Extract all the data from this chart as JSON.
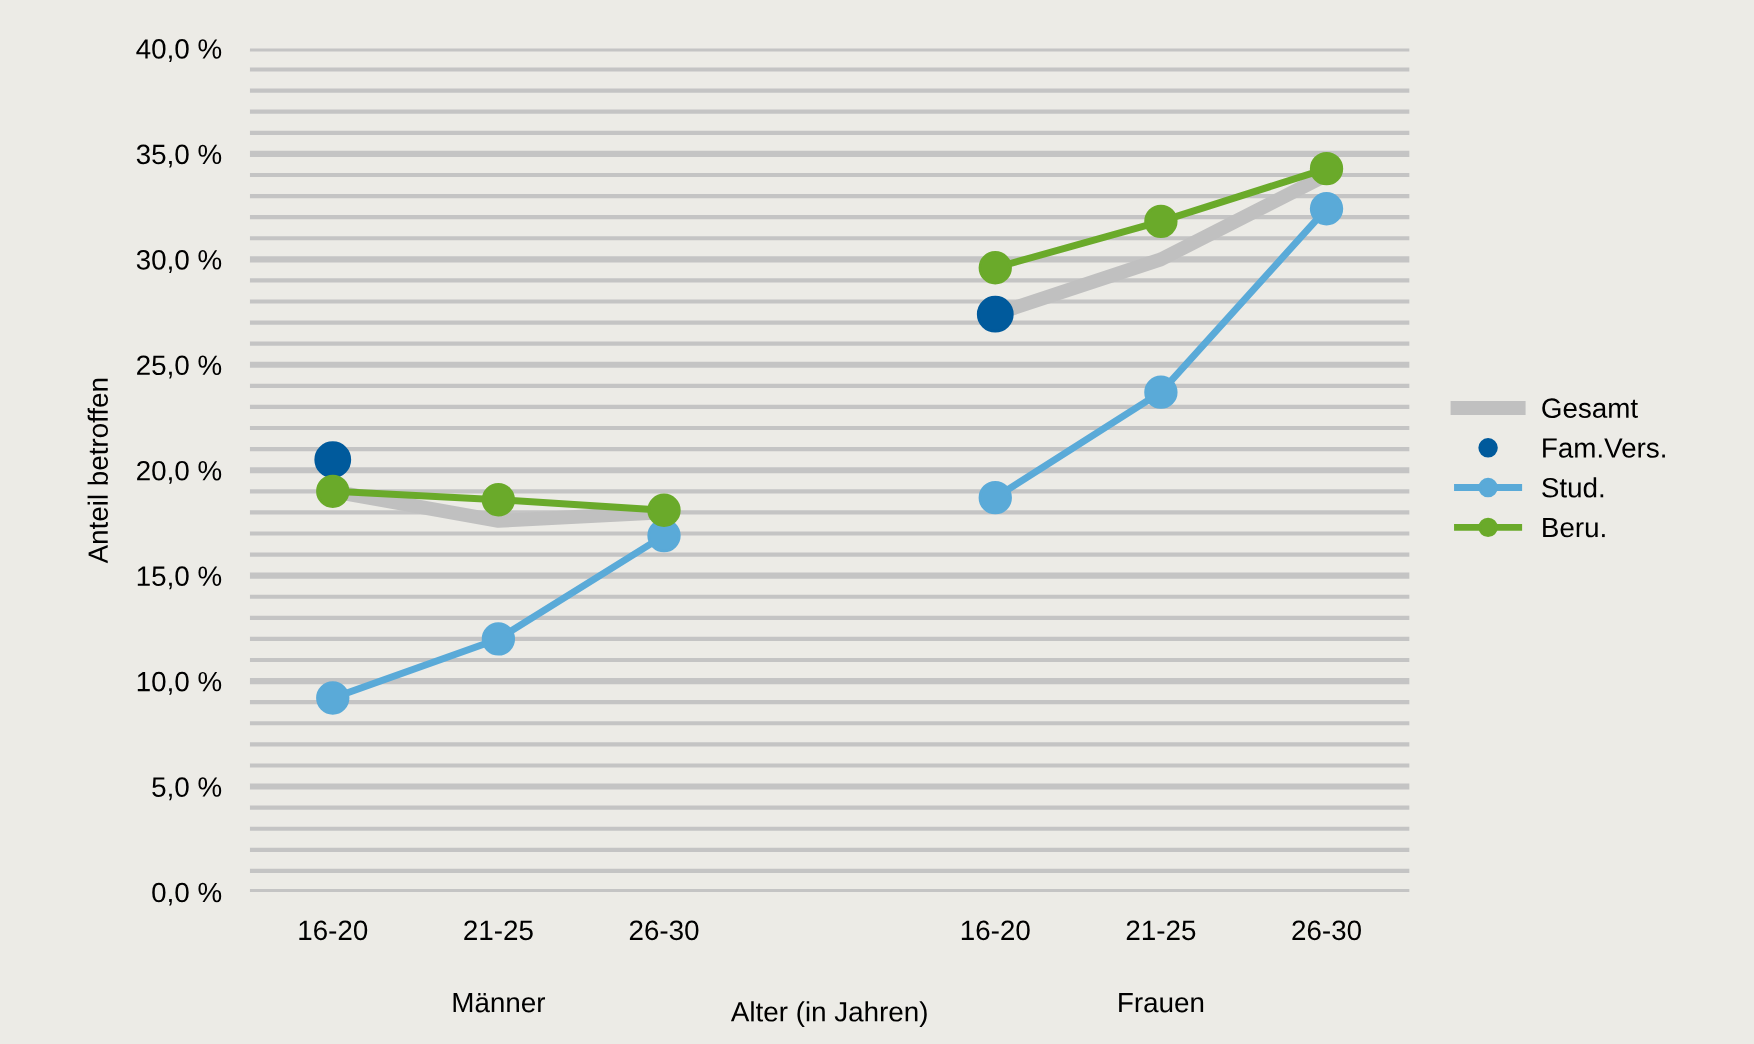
{
  "chart_data": {
    "type": "line",
    "ylabel": "Anteil betroffen",
    "xlabel": "Alter (in Jahren)",
    "annotations": [
      "Männer",
      "Frauen"
    ],
    "categories": [
      "16-20",
      "21-25",
      "26-30",
      null,
      "16-20",
      "21-25",
      "26-30"
    ],
    "series": [
      {
        "name": "Gesamt",
        "color": "#c0c0c0",
        "marker": "none",
        "values": [
          19.0,
          17.6,
          18.0,
          null,
          27.4,
          30.0,
          34.0
        ]
      },
      {
        "name": "Fam.Vers.",
        "type": "scatter",
        "color": "#005a9c",
        "marker": "circle",
        "values": [
          20.5,
          null,
          null,
          null,
          27.4,
          null,
          null
        ]
      },
      {
        "name": "Stud.",
        "color": "#5aaad8",
        "marker": "circle",
        "values": [
          9.2,
          12.0,
          16.9,
          null,
          18.7,
          23.7,
          32.4
        ]
      },
      {
        "name": "Beru.",
        "color": "#6aaa2a",
        "marker": "circle",
        "values": [
          19.0,
          18.6,
          18.1,
          null,
          29.6,
          31.8,
          34.3
        ]
      }
    ],
    "ylim": [
      0,
      40
    ],
    "yticks": [
      {
        "value": 0,
        "label": "0,0 %"
      },
      {
        "value": 1,
        "label": null
      },
      {
        "value": 2,
        "label": null
      },
      {
        "value": 3,
        "label": null
      },
      {
        "value": 4,
        "label": null
      },
      {
        "value": 5,
        "label": "5,0 %"
      },
      {
        "value": 6,
        "label": null
      },
      {
        "value": 7,
        "label": null
      },
      {
        "value": 8,
        "label": null
      },
      {
        "value": 9,
        "label": null
      },
      {
        "value": 10,
        "label": "10,0 %"
      },
      {
        "value": 11,
        "label": null
      },
      {
        "value": 12,
        "label": null
      },
      {
        "value": 13,
        "label": null
      },
      {
        "value": 14,
        "label": null
      },
      {
        "value": 15,
        "label": "15,0 %"
      },
      {
        "value": 16,
        "label": null
      },
      {
        "value": 17,
        "label": null
      },
      {
        "value": 18,
        "label": null
      },
      {
        "value": 19,
        "label": null
      },
      {
        "value": 20,
        "label": "20,0 %"
      },
      {
        "value": 21,
        "label": null
      },
      {
        "value": 22,
        "label": null
      },
      {
        "value": 23,
        "label": null
      },
      {
        "value": 24,
        "label": null
      },
      {
        "value": 25,
        "label": "25,0 %"
      },
      {
        "value": 26,
        "label": null
      },
      {
        "value": 27,
        "label": null
      },
      {
        "value": 28,
        "label": null
      },
      {
        "value": 29,
        "label": null
      },
      {
        "value": 30,
        "label": "30,0 %"
      },
      {
        "value": 31,
        "label": null
      },
      {
        "value": 32,
        "label": null
      },
      {
        "value": 33,
        "label": null
      },
      {
        "value": 34,
        "label": null
      },
      {
        "value": 35,
        "label": "35,0 %"
      },
      {
        "value": 36,
        "label": null
      },
      {
        "value": 37,
        "label": null
      },
      {
        "value": 38,
        "label": null
      },
      {
        "value": 39,
        "label": null
      },
      {
        "value": 40,
        "label": "40,0 %"
      }
    ],
    "grid": "y",
    "legend": "right"
  }
}
